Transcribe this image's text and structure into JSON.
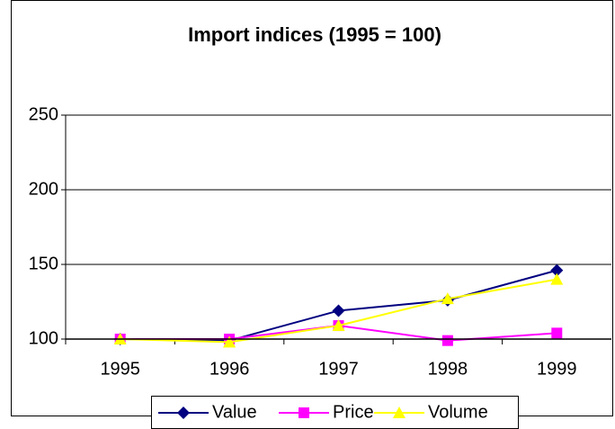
{
  "chart_data": {
    "type": "line",
    "title": "Import indices (1995 = 100)",
    "categories": [
      "1995",
      "1996",
      "1997",
      "1998",
      "1999"
    ],
    "series": [
      {
        "name": "Value",
        "color": "#000080",
        "marker": "diamond",
        "values": [
          100,
          99,
          119,
          126,
          146
        ]
      },
      {
        "name": "Price",
        "color": "#ff00ff",
        "marker": "square",
        "values": [
          100,
          100,
          109,
          99,
          104
        ]
      },
      {
        "name": "Volume",
        "color": "#ffff00",
        "marker": "triangle",
        "values": [
          100,
          98,
          109,
          127,
          140
        ]
      }
    ],
    "ylim": [
      100,
      250
    ],
    "yticks": [
      100,
      150,
      200,
      250
    ],
    "grid": true,
    "legend": "bottom"
  }
}
